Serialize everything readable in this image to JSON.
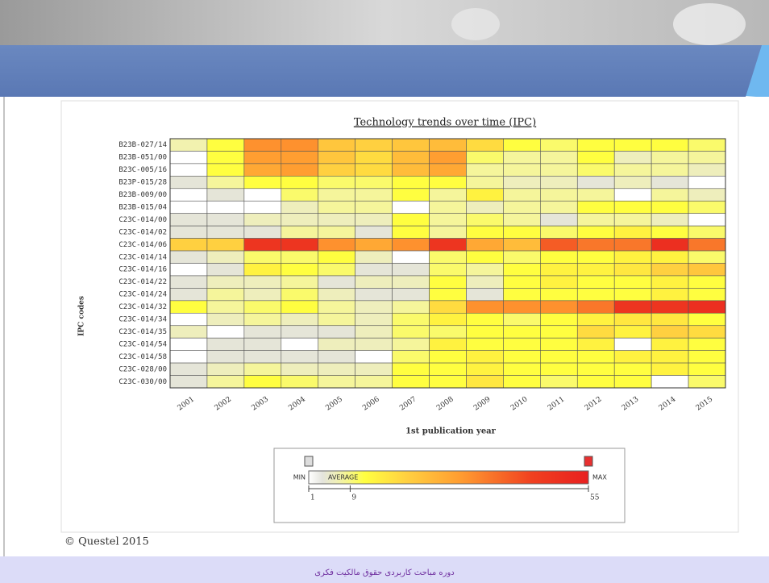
{
  "chart_data": {
    "type": "heatmap",
    "title": "Technology trends over time (IPC)",
    "xlabel": "1st publication year",
    "ylabel": "IPC codes",
    "x": [
      "2001",
      "2002",
      "2003",
      "2004",
      "2005",
      "2006",
      "2007",
      "2008",
      "2009",
      "2010",
      "2011",
      "2012",
      "2013",
      "2014",
      "2015"
    ],
    "categories": [
      "B23B-027/14",
      "B23B-051/00",
      "B23C-005/16",
      "B23P-015/28",
      "B23B-009/00",
      "B23B-015/04",
      "C23C-014/00",
      "C23C-014/02",
      "C23C-014/06",
      "C23C-014/14",
      "C23C-014/16",
      "C23C-014/22",
      "C23C-014/24",
      "C23C-014/32",
      "C23C-014/34",
      "C23C-014/35",
      "C23C-014/54",
      "C23C-014/58",
      "C23C-028/00",
      "C23C-030/00"
    ],
    "values": [
      [
        7,
        12,
        32,
        32,
        22,
        20,
        22,
        24,
        18,
        12,
        10,
        12,
        12,
        12,
        10
      ],
      [
        1,
        12,
        30,
        30,
        22,
        18,
        24,
        30,
        10,
        8,
        8,
        12,
        6,
        8,
        8
      ],
      [
        1,
        12,
        28,
        30,
        20,
        18,
        24,
        28,
        8,
        8,
        8,
        10,
        8,
        8,
        6
      ],
      [
        4,
        8,
        12,
        12,
        10,
        10,
        12,
        12,
        8,
        6,
        6,
        4,
        6,
        4,
        1
      ],
      [
        1,
        4,
        1,
        10,
        8,
        8,
        12,
        8,
        14,
        8,
        8,
        8,
        1,
        8,
        6
      ],
      [
        1,
        1,
        1,
        6,
        8,
        8,
        1,
        8,
        6,
        8,
        8,
        12,
        12,
        12,
        10
      ],
      [
        4,
        4,
        6,
        6,
        6,
        6,
        12,
        8,
        10,
        8,
        4,
        8,
        8,
        6,
        1
      ],
      [
        4,
        4,
        4,
        8,
        8,
        4,
        12,
        8,
        12,
        12,
        10,
        12,
        14,
        12,
        10
      ],
      [
        20,
        20,
        48,
        48,
        32,
        28,
        32,
        48,
        28,
        24,
        40,
        36,
        36,
        50,
        36
      ],
      [
        4,
        6,
        10,
        10,
        12,
        6,
        1,
        10,
        12,
        10,
        12,
        12,
        14,
        14,
        10
      ],
      [
        1,
        4,
        14,
        12,
        10,
        4,
        4,
        10,
        8,
        12,
        14,
        14,
        16,
        20,
        22
      ],
      [
        4,
        6,
        6,
        8,
        4,
        6,
        6,
        12,
        6,
        12,
        14,
        12,
        12,
        14,
        12
      ],
      [
        4,
        8,
        6,
        10,
        6,
        4,
        4,
        12,
        4,
        12,
        12,
        12,
        12,
        14,
        12
      ],
      [
        12,
        8,
        10,
        12,
        8,
        6,
        8,
        18,
        32,
        32,
        32,
        36,
        48,
        48,
        50
      ],
      [
        1,
        6,
        8,
        6,
        8,
        6,
        10,
        14,
        12,
        10,
        12,
        14,
        16,
        16,
        12
      ],
      [
        6,
        1,
        4,
        4,
        4,
        6,
        10,
        10,
        12,
        12,
        12,
        18,
        14,
        20,
        18
      ],
      [
        1,
        4,
        4,
        1,
        6,
        6,
        8,
        14,
        12,
        12,
        12,
        14,
        1,
        14,
        12
      ],
      [
        1,
        4,
        4,
        4,
        4,
        1,
        10,
        12,
        14,
        12,
        12,
        12,
        14,
        14,
        12
      ],
      [
        4,
        6,
        8,
        6,
        6,
        6,
        12,
        12,
        14,
        12,
        12,
        12,
        12,
        14,
        12
      ],
      [
        4,
        8,
        12,
        10,
        8,
        8,
        12,
        12,
        16,
        12,
        10,
        12,
        12,
        1,
        10
      ]
    ],
    "colorbar": {
      "min_label": "MIN",
      "average_label": "AVERAGE",
      "max_label": "MAX",
      "clim": [
        1,
        55
      ],
      "ticks": [
        1,
        9,
        55
      ]
    }
  },
  "footer": {
    "copyright": "© Questel 2015",
    "course": "دوره مباحث کاربردی حقوق مالکیت فکری"
  }
}
